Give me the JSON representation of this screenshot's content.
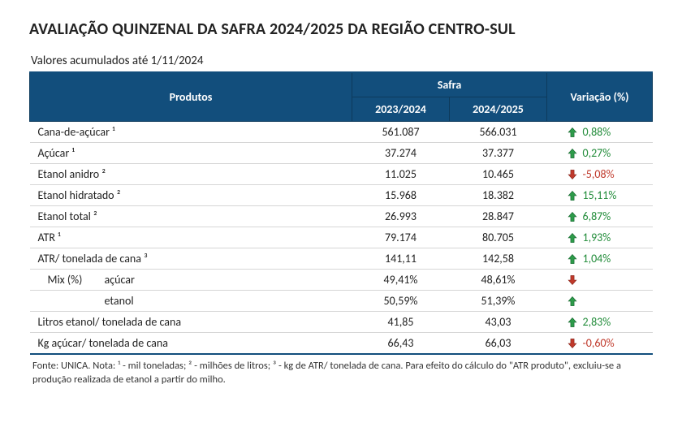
{
  "title": "AVALIAÇÃO QUINZENAL DA SAFRA 2024/2025 DA REGIÃO CENTRO-SUL",
  "subtitle": "Valores acumulados até 1/11/2024",
  "header": {
    "produtos": "Produtos",
    "safra": "Safra",
    "col1": "2023/2024",
    "col2": "2024/2025",
    "variacao": "Variação (%)"
  },
  "colors": {
    "header_bg": "#124e7c",
    "header_text": "#ffffff",
    "up": "#2e9b4a",
    "down": "#c0392b",
    "grid": "#d6d6d6"
  },
  "rows": [
    {
      "label": "Cana-de-açúcar ¹",
      "v1": "561.087",
      "v2": "566.031",
      "pct": "0,88%",
      "dir": "up"
    },
    {
      "label": "Açúcar ¹",
      "v1": "37.274",
      "v2": "37.377",
      "pct": "0,27%",
      "dir": "up"
    },
    {
      "label": "Etanol anidro ²",
      "v1": "11.025",
      "v2": "10.465",
      "pct": "-5,08%",
      "dir": "down"
    },
    {
      "label": "Etanol hidratado ²",
      "v1": "15.968",
      "v2": "18.382",
      "pct": "15,11%",
      "dir": "up"
    },
    {
      "label": "Etanol total ²",
      "v1": "26.993",
      "v2": "28.847",
      "pct": "6,87%",
      "dir": "up"
    },
    {
      "label": "ATR ¹",
      "v1": "79.174",
      "v2": "80.705",
      "pct": "1,93%",
      "dir": "up"
    },
    {
      "label": "ATR/ tonelada de cana ³",
      "v1": "141,11",
      "v2": "142,58",
      "pct": "1,04%",
      "dir": "up"
    },
    {
      "label_prefix": "Mix (%)",
      "label": "açúcar",
      "v1": "49,41%",
      "v2": "48,61%",
      "pct": "",
      "dir": "down",
      "mix": true
    },
    {
      "label_prefix": "",
      "label": "etanol",
      "v1": "50,59%",
      "v2": "51,39%",
      "pct": "",
      "dir": "up",
      "mix": true
    },
    {
      "label": "Litros etanol/ tonelada de cana",
      "v1": "41,85",
      "v2": "43,03",
      "pct": "2,83%",
      "dir": "up"
    },
    {
      "label": "Kg açúcar/ tonelada de cana",
      "v1": "66,43",
      "v2": "66,03",
      "pct": "-0,60%",
      "dir": "down"
    }
  ],
  "footnote": "Fonte: UNICA. Nota: ¹ - mil toneladas; ² - milhões de litros; ³ - kg de ATR/ tonelada de cana. Para efeito do cálculo do \"ATR produto\", excluiu-se a produção realizada de etanol a partir do milho."
}
